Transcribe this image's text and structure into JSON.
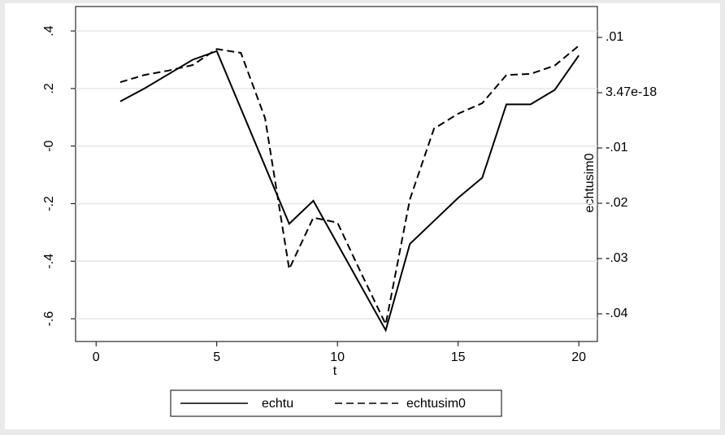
{
  "chart_data": {
    "type": "line",
    "x_label": "t",
    "y2_label": "echtusim0",
    "x": [
      1,
      2,
      3,
      4,
      5,
      6,
      7,
      8,
      9,
      10,
      11,
      12,
      13,
      14,
      15,
      16,
      17,
      18,
      19,
      20
    ],
    "xlim": [
      -0.85,
      20.77
    ],
    "xticks": [
      0,
      5,
      10,
      15,
      20
    ],
    "ylim": [
      -0.679,
      0.485
    ],
    "yticks": [
      {
        "value": 0.4,
        "label": ".4"
      },
      {
        "value": 0.2,
        "label": ".2"
      },
      {
        "value": 0,
        "label": "-0"
      },
      {
        "value": -0.2,
        "label": "-.2"
      },
      {
        "value": -0.4,
        "label": "-.4"
      },
      {
        "value": -0.6,
        "label": "-.6"
      }
    ],
    "y2lim": [
      -0.045,
      0.01559
    ],
    "y2ticks": [
      {
        "value": 0.01,
        "label": ".01"
      },
      3.47e-18,
      {
        "value": -0.01,
        "label": "-.01"
      },
      {
        "value": -0.02,
        "label": "-.02"
      },
      {
        "value": -0.03,
        "label": "-.03"
      },
      {
        "value": -0.04,
        "label": "-.04"
      }
    ],
    "grid": true,
    "series": [
      {
        "name": "echtu",
        "color": "#000000",
        "dash": "solid",
        "values": [
          0.155,
          0.2,
          0.25,
          0.3,
          0.33,
          0.13,
          -0.07,
          -0.27,
          -0.19,
          -0.34,
          -0.49,
          -0.64,
          -0.34,
          -0.26,
          -0.18,
          -0.11,
          0.145,
          0.145,
          0.195,
          0.315
        ]
      },
      {
        "name": "echtusim0",
        "color": "#000000",
        "dash": "dashed",
        "axis": "y2",
        "values": [
          0.0019,
          0.0032,
          0.004,
          0.005,
          0.0079,
          0.0072,
          -0.0046,
          -0.0319,
          -0.0226,
          -0.0235,
          -0.0328,
          -0.0419,
          -0.0193,
          -0.0065,
          -0.0038,
          -0.0019,
          0.0032,
          0.0034,
          0.0049,
          0.0085
        ]
      }
    ]
  }
}
